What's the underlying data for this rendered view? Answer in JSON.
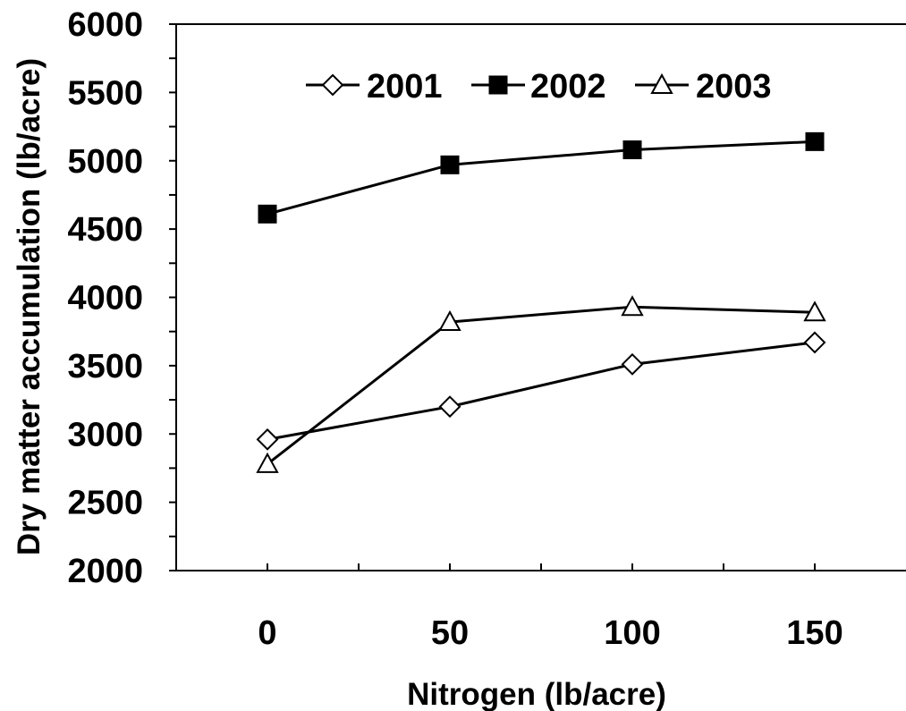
{
  "chart_data": {
    "type": "line",
    "title": "",
    "xlabel": "Nitrogen (lb/acre)",
    "ylabel": "Dry matter accumulation (lb/acre)",
    "x": [
      0,
      50,
      100,
      150
    ],
    "x_tick_labels": [
      "0",
      "50",
      "100",
      "150"
    ],
    "y_tick_labels": [
      "2000",
      "2500",
      "3000",
      "3500",
      "4000",
      "4500",
      "5000",
      "5500",
      "6000"
    ],
    "xlim": [
      -25,
      175
    ],
    "ylim": [
      2000,
      6000
    ],
    "grid": false,
    "legend_position": "top-center",
    "series": [
      {
        "name": "2001",
        "marker": "diamond-open",
        "values": [
          2960,
          3200,
          3510,
          3670
        ]
      },
      {
        "name": "2002",
        "marker": "square-filled",
        "values": [
          4610,
          4970,
          5080,
          5140
        ]
      },
      {
        "name": "2003",
        "marker": "triangle-open",
        "values": [
          2780,
          3820,
          3930,
          3890
        ]
      }
    ],
    "colors": {
      "line": "#000000",
      "marker_fill": "#ffffff",
      "filled_marker": "#000000",
      "background": "#ffffff"
    }
  }
}
